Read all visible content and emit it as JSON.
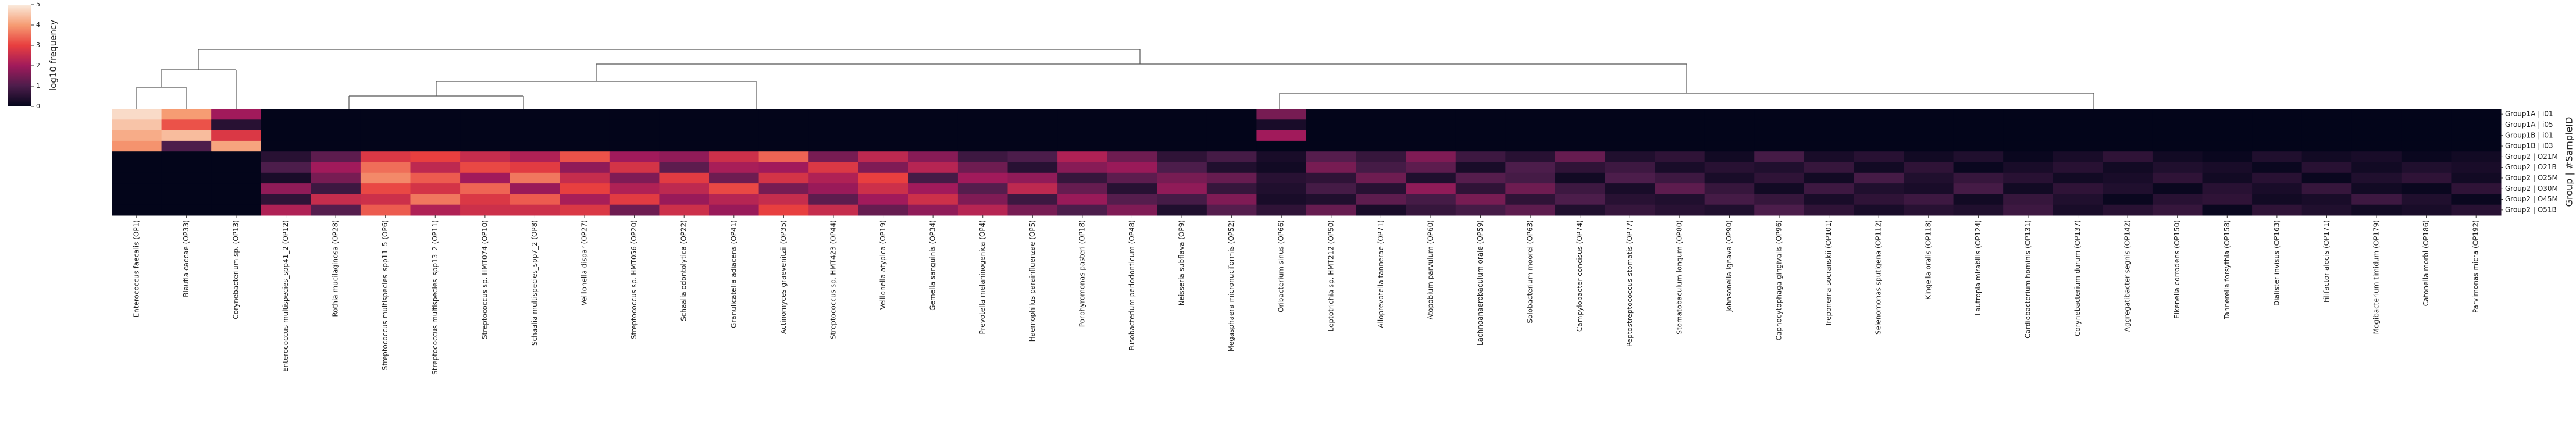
{
  "chart_data": {
    "type": "heatmap",
    "y_label": "Group | #SampleID",
    "colorbar_label": "log10 frequency",
    "colorbar_lim": [
      0,
      5
    ],
    "colorbar_ticks": [
      0,
      1,
      2,
      3,
      4,
      5
    ],
    "colormap": [
      "#03051a",
      "#4c1d4b",
      "#a11a5b",
      "#e83f3f",
      "#f69c73",
      "#faebdd"
    ],
    "rows": [
      "Group1A | i01",
      "Group1A | i05",
      "Group1B | i01",
      "Group1B | i03",
      "Group2 | O21M",
      "Group2 | O21B",
      "Group2 | O25M",
      "Group2 | O30M",
      "Group2 | O45M",
      "Group2 | O51B"
    ],
    "categories": [
      "Enterococcus faecalis (OP1)",
      "Blautia caccae (OP33)",
      "Corynebacterium sp. (OP13)",
      "Enterococcus multispecies_spp41_2 (OP12)",
      "Rothia mucilaginosa (OP28)",
      "Streptococcus multispecies_spp11_5 (OP6)",
      "Streptococcus multispecies_spp13_2 (OP11)",
      "Streptococcus sp. HMT074 (OP10)",
      "Schaalia multispecies_spp7_2 (OP8)",
      "Veillonella dispar (OP27)",
      "Streptococcus sp. HMT056 (OP20)",
      "Schaalia odontolytica (OP22)",
      "Granulicatella adiacens (OP41)",
      "Actinomyces graevenitzii (OP35)",
      "Streptococcus sp. HMT423 (OP44)",
      "Veillonella atypica (OP19)",
      "Gemella sanguinis (OP34)",
      "Prevotella melaninogenica (OP4)",
      "Haemophilus parainfluenzae (OP5)",
      "Porphyromonas pasteri (OP18)",
      "Fusobacterium periodonticum (OP48)",
      "Neisseria subflava (OP9)",
      "Megasphaera micronuciformis (OP52)",
      "Oribacterium sinus (OP66)",
      "Leptotrichia sp. HMT212 (OP50)",
      "Alloprevotella tannerae (OP71)",
      "Atopobium parvulum (OP60)",
      "Lachnoanaerobaculum orale (OP59)",
      "Solobacterium moorei (OP63)",
      "Campylobacter concisus (OP74)",
      "Peptostreptococcus stomatis (OP77)",
      "Stomatobaculum longum (OP80)",
      "Johnsonella ignava (OP90)",
      "Capnocytophaga gingivalis (OP96)",
      "Treponema socranskii (OP101)",
      "Selenomonas sputigena (OP112)",
      "Kingella oralis (OP118)",
      "Lautropia mirabilis (OP124)",
      "Cardiobacterium hominis (OP131)",
      "Corynebacterium durum (OP137)",
      "Aggregatibacter segnis (OP142)",
      "Eikenella corrodens (OP150)",
      "Tannerella forsythia (OP158)",
      "Dialister invisus (OP163)",
      "Filifactor alocis (OP171)",
      "Mogibacterium timidum (OP179)",
      "Catonella morbi (OP186)",
      "Parvimonas micra (OP192)"
    ],
    "values": [
      [
        4.8,
        4.0,
        2.0,
        0,
        0,
        0,
        0,
        0,
        0,
        0,
        0,
        0,
        0,
        0,
        0,
        0,
        0,
        0,
        0,
        0,
        0,
        0,
        0,
        1.5,
        0,
        0,
        0,
        0,
        0,
        0,
        0,
        0,
        0,
        0,
        0,
        0,
        0,
        0,
        0,
        0,
        0,
        0,
        0,
        0,
        0,
        0,
        0,
        0
      ],
      [
        4.5,
        3.2,
        0.5,
        0,
        0,
        0,
        0,
        0,
        0,
        0,
        0,
        0,
        0,
        0,
        0,
        0,
        0,
        0,
        0,
        0,
        0,
        0,
        0,
        0.3,
        0,
        0,
        0,
        0,
        0,
        0,
        0,
        0,
        0,
        0,
        0,
        0,
        0,
        0,
        0,
        0,
        0,
        0,
        0,
        0,
        0,
        0,
        0,
        0
      ],
      [
        4.2,
        4.4,
        2.8,
        0,
        0,
        0,
        0,
        0,
        0,
        0,
        0,
        0,
        0,
        0,
        0,
        0,
        0,
        0,
        0,
        0,
        0,
        0,
        0,
        2.0,
        0,
        0,
        0,
        0,
        0,
        0,
        0,
        0,
        0,
        0,
        0,
        0,
        0,
        0,
        0,
        0,
        0,
        0,
        0,
        0,
        0,
        0,
        0,
        0
      ],
      [
        3.9,
        1.0,
        4.1,
        0,
        0,
        0,
        0,
        0,
        0,
        0,
        0,
        0,
        0,
        0,
        0,
        0,
        0,
        0,
        0,
        0,
        0,
        0,
        0,
        0,
        0,
        0,
        0,
        0,
        0,
        0,
        0,
        0,
        0,
        0,
        0,
        0,
        0,
        0,
        0,
        0,
        0,
        0,
        0,
        0,
        0,
        0,
        0,
        0
      ],
      [
        0,
        0,
        0,
        0.5,
        1.2,
        2.8,
        3.0,
        2.5,
        2.2,
        3.2,
        2.0,
        1.8,
        2.6,
        3.4,
        1.5,
        2.4,
        1.7,
        0.8,
        1.0,
        2.2,
        1.4,
        0.6,
        0.9,
        0.3,
        1.1,
        0.7,
        1.6,
        0.8,
        0.5,
        1.3,
        0.4,
        0.6,
        0.2,
        0.9,
        0.3,
        0.5,
        0.2,
        0.4,
        0.1,
        0.3,
        0.6,
        0.2,
        0.1,
        0.4,
        0.2,
        0.3,
        0.1,
        0.2
      ],
      [
        0,
        0,
        0,
        1.0,
        2.0,
        3.5,
        2.4,
        3.1,
        2.9,
        1.8,
        2.7,
        1.2,
        2.1,
        2.0,
        2.8,
        1.6,
        2.3,
        1.4,
        0.5,
        1.7,
        1.9,
        1.0,
        0.4,
        0.2,
        1.5,
        0.9,
        1.2,
        0.3,
        1.0,
        0.6,
        0.8,
        0.3,
        0.5,
        0.4,
        0.7,
        0.2,
        0.6,
        0.1,
        0.3,
        0.5,
        0.2,
        0.4,
        0.3,
        0.1,
        0.5,
        0.2,
        0.4,
        0.3
      ],
      [
        0,
        0,
        0,
        0.3,
        1.5,
        3.8,
        3.3,
        2.0,
        3.6,
        2.5,
        1.6,
        2.9,
        1.4,
        2.7,
        2.2,
        3.0,
        0.9,
        2.0,
        1.8,
        0.7,
        1.2,
        1.5,
        1.3,
        0.5,
        0.6,
        1.4,
        0.4,
        1.1,
        0.9,
        0.2,
        1.0,
        0.8,
        0.3,
        0.6,
        0.2,
        0.9,
        0.4,
        0.7,
        0.5,
        0.2,
        0.3,
        0.6,
        0.2,
        0.5,
        0.1,
        0.4,
        0.6,
        0.2
      ],
      [
        0,
        0,
        0,
        1.8,
        0.8,
        3.1,
        2.7,
        3.4,
        1.9,
        3.0,
        2.2,
        2.4,
        3.1,
        1.5,
        1.9,
        2.6,
        2.0,
        1.1,
        2.4,
        1.3,
        0.5,
        1.8,
        0.7,
        0.4,
        0.9,
        0.5,
        1.8,
        0.6,
        1.4,
        0.8,
        0.3,
        1.2,
        0.7,
        0.2,
        0.8,
        0.4,
        0.3,
        0.9,
        0.2,
        0.6,
        0.4,
        0.1,
        0.5,
        0.3,
        0.7,
        0.2,
        0.1,
        0.6
      ],
      [
        0,
        0,
        0,
        0.6,
        2.5,
        2.6,
        3.6,
        2.8,
        3.3,
        2.1,
        2.9,
        1.9,
        2.3,
        2.5,
        1.2,
        2.0,
        2.6,
        1.6,
        0.8,
        1.9,
        1.1,
        0.9,
        1.6,
        0.3,
        0.4,
        1.2,
        0.9,
        1.5,
        0.6,
        1.0,
        0.5,
        0.4,
        0.9,
        0.7,
        0.3,
        0.6,
        0.8,
        0.2,
        0.7,
        0.4,
        0.1,
        0.5,
        0.6,
        0.2,
        0.3,
        0.8,
        0.4,
        0.1
      ],
      [
        0,
        0,
        0,
        2.2,
        1.1,
        3.3,
        2.2,
        2.6,
        2.6,
        2.8,
        1.4,
        2.6,
        1.9,
        3.0,
        2.5,
        1.3,
        1.8,
        2.3,
        1.5,
        1.0,
        1.6,
        0.4,
        1.1,
        0.6,
        1.3,
        0.3,
        0.7,
        0.9,
        1.2,
        0.4,
        0.7,
        0.5,
        0.4,
        1.0,
        0.6,
        0.3,
        0.5,
        0.4,
        0.8,
        0.3,
        0.5,
        0.7,
        0.1,
        0.6,
        0.4,
        0.2,
        0.3,
        0.5
      ]
    ]
  }
}
